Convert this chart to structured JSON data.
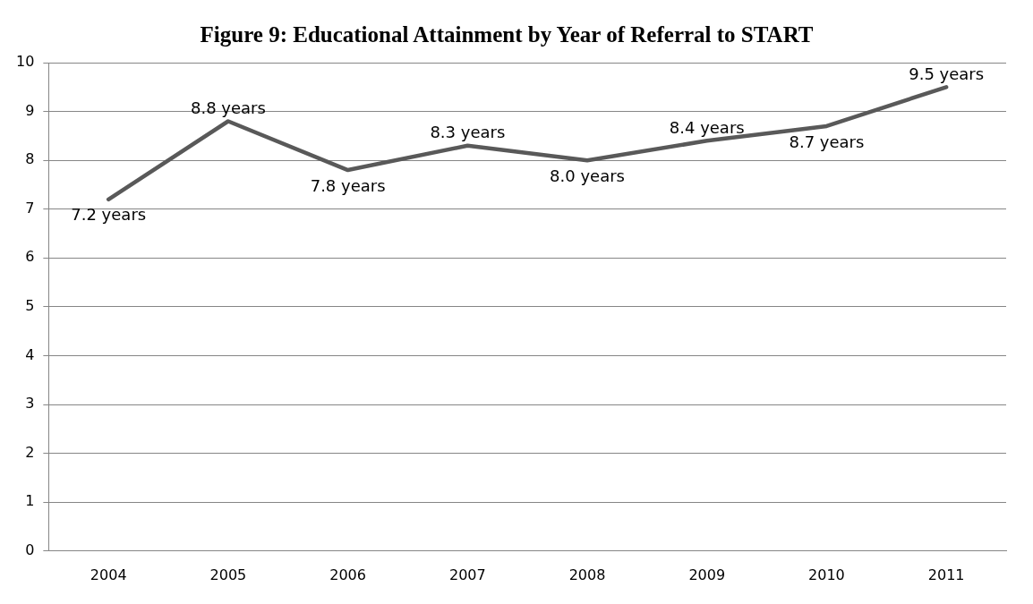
{
  "chart_data": {
    "type": "line",
    "title": "Figure 9: Educational Attainment by Year of Referral to START",
    "categories": [
      "2004",
      "2005",
      "2006",
      "2007",
      "2008",
      "2009",
      "2010",
      "2011"
    ],
    "series": [
      {
        "color": "#595959",
        "values": [
          7.2,
          8.8,
          7.8,
          8.3,
          8.0,
          8.4,
          8.7,
          9.5
        ],
        "value_labels": [
          "7.2 years",
          "8.8 years",
          "7.8 years",
          "8.3 years",
          "8.0 years",
          "8.4 years",
          "8.7 years",
          "9.5 years"
        ]
      }
    ],
    "ylim": [
      0,
      10
    ],
    "yticks": [
      0,
      1,
      2,
      3,
      4,
      5,
      6,
      7,
      8,
      9,
      10
    ],
    "grid": "y",
    "legend": false,
    "marker": "none",
    "line_style": "solid"
  }
}
